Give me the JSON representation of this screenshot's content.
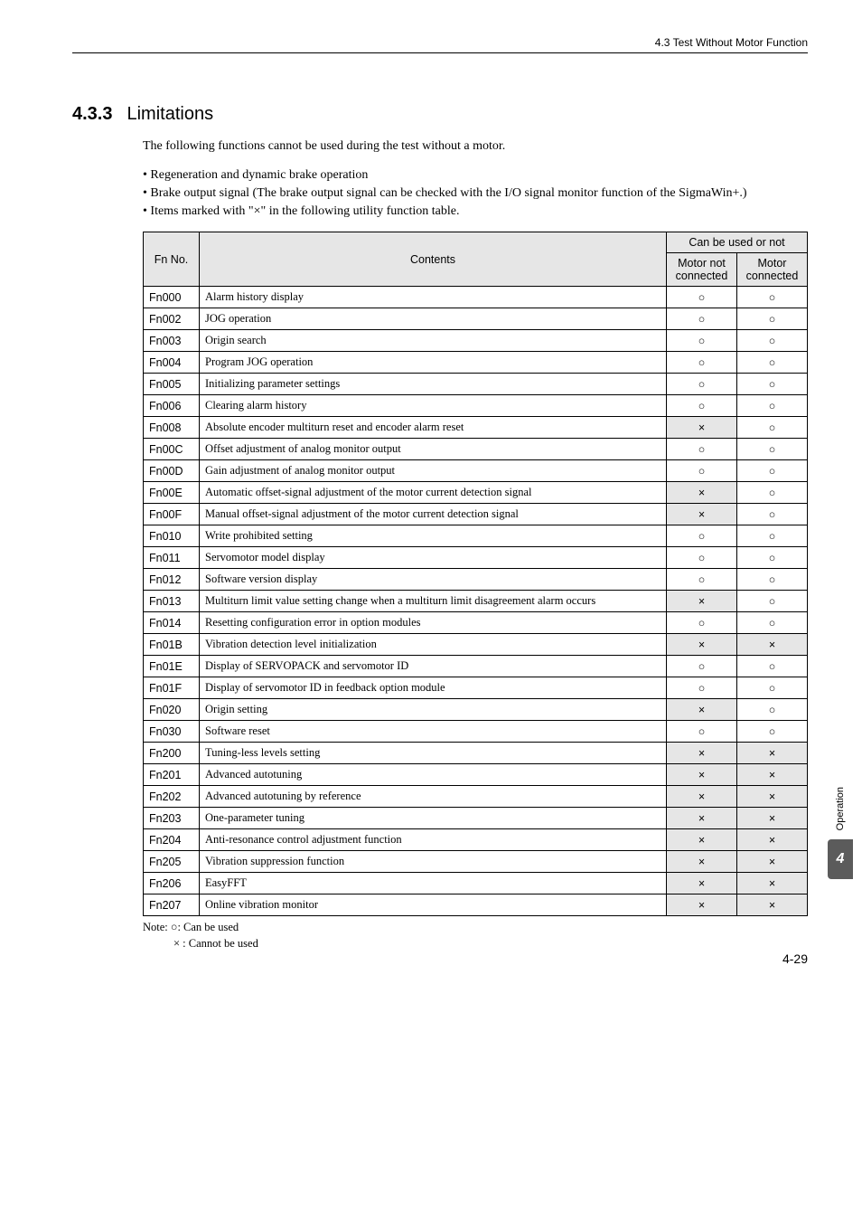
{
  "header": {
    "breadcrumb": "4.3  Test Without Motor Function"
  },
  "section": {
    "number": "4.3.3",
    "title": "Limitations"
  },
  "intro": "The following functions cannot be used during the test without a motor.",
  "bullets": [
    "Regeneration and dynamic brake operation",
    "Brake output signal (The brake output signal can be checked with the I/O signal monitor function of the SigmaWin+.)",
    "Items marked with \"×\" in the following utility function table."
  ],
  "table": {
    "header": {
      "fn": "Fn No.",
      "contents": "Contents",
      "group": "Can be used or not",
      "col_notconn": "Motor not connected",
      "col_conn": "Motor connected"
    },
    "rows": [
      {
        "fn": "Fn000",
        "desc": "Alarm history display",
        "nc": "○",
        "c": "○",
        "nc_shade": false,
        "c_shade": false
      },
      {
        "fn": "Fn002",
        "desc": "JOG operation",
        "nc": "○",
        "c": "○",
        "nc_shade": false,
        "c_shade": false
      },
      {
        "fn": "Fn003",
        "desc": "Origin search",
        "nc": "○",
        "c": "○",
        "nc_shade": false,
        "c_shade": false
      },
      {
        "fn": "Fn004",
        "desc": "Program JOG operation",
        "nc": "○",
        "c": "○",
        "nc_shade": false,
        "c_shade": false
      },
      {
        "fn": "Fn005",
        "desc": "Initializing parameter settings",
        "nc": "○",
        "c": "○",
        "nc_shade": false,
        "c_shade": false
      },
      {
        "fn": "Fn006",
        "desc": "Clearing alarm history",
        "nc": "○",
        "c": "○",
        "nc_shade": false,
        "c_shade": false
      },
      {
        "fn": "Fn008",
        "desc": "Absolute encoder multiturn reset and encoder alarm reset",
        "nc": "×",
        "c": "○",
        "nc_shade": true,
        "c_shade": false
      },
      {
        "fn": "Fn00C",
        "desc": "Offset adjustment of analog monitor output",
        "nc": "○",
        "c": "○",
        "nc_shade": false,
        "c_shade": false
      },
      {
        "fn": "Fn00D",
        "desc": "Gain adjustment of analog monitor output",
        "nc": "○",
        "c": "○",
        "nc_shade": false,
        "c_shade": false
      },
      {
        "fn": "Fn00E",
        "desc": "Automatic offset-signal adjustment of the motor current detection signal",
        "nc": "×",
        "c": "○",
        "nc_shade": true,
        "c_shade": false
      },
      {
        "fn": "Fn00F",
        "desc": "Manual offset-signal adjustment of the motor current detection signal",
        "nc": "×",
        "c": "○",
        "nc_shade": true,
        "c_shade": false
      },
      {
        "fn": "Fn010",
        "desc": "Write prohibited setting",
        "nc": "○",
        "c": "○",
        "nc_shade": false,
        "c_shade": false
      },
      {
        "fn": "Fn011",
        "desc": "Servomotor model display",
        "nc": "○",
        "c": "○",
        "nc_shade": false,
        "c_shade": false
      },
      {
        "fn": "Fn012",
        "desc": "Software version display",
        "nc": "○",
        "c": "○",
        "nc_shade": false,
        "c_shade": false
      },
      {
        "fn": "Fn013",
        "desc": "Multiturn limit value setting change when a multiturn limit disagreement alarm occurs",
        "nc": "×",
        "c": "○",
        "nc_shade": true,
        "c_shade": false
      },
      {
        "fn": "Fn014",
        "desc": "Resetting configuration error in option modules",
        "nc": "○",
        "c": "○",
        "nc_shade": false,
        "c_shade": false
      },
      {
        "fn": "Fn01B",
        "desc": "Vibration detection level initialization",
        "nc": "×",
        "c": "×",
        "nc_shade": true,
        "c_shade": true
      },
      {
        "fn": "Fn01E",
        "desc": "Display of SERVOPACK and servomotor ID",
        "nc": "○",
        "c": "○",
        "nc_shade": false,
        "c_shade": false
      },
      {
        "fn": "Fn01F",
        "desc": "Display of servomotor ID in feedback option module",
        "nc": "○",
        "c": "○",
        "nc_shade": false,
        "c_shade": false
      },
      {
        "fn": "Fn020",
        "desc": "Origin setting",
        "nc": "×",
        "c": "○",
        "nc_shade": true,
        "c_shade": false
      },
      {
        "fn": "Fn030",
        "desc": "Software reset",
        "nc": "○",
        "c": "○",
        "nc_shade": false,
        "c_shade": false
      },
      {
        "fn": "Fn200",
        "desc": "Tuning-less levels setting",
        "nc": "×",
        "c": "×",
        "nc_shade": true,
        "c_shade": true
      },
      {
        "fn": "Fn201",
        "desc": "Advanced autotuning",
        "nc": "×",
        "c": "×",
        "nc_shade": true,
        "c_shade": true
      },
      {
        "fn": "Fn202",
        "desc": "Advanced autotuning by reference",
        "nc": "×",
        "c": "×",
        "nc_shade": true,
        "c_shade": true
      },
      {
        "fn": "Fn203",
        "desc": "One-parameter tuning",
        "nc": "×",
        "c": "×",
        "nc_shade": true,
        "c_shade": true
      },
      {
        "fn": "Fn204",
        "desc": "Anti-resonance control adjustment function",
        "nc": "×",
        "c": "×",
        "nc_shade": true,
        "c_shade": true
      },
      {
        "fn": "Fn205",
        "desc": "Vibration suppression function",
        "nc": "×",
        "c": "×",
        "nc_shade": true,
        "c_shade": true
      },
      {
        "fn": "Fn206",
        "desc": "EasyFFT",
        "nc": "×",
        "c": "×",
        "nc_shade": true,
        "c_shade": true
      },
      {
        "fn": "Fn207",
        "desc": "Online vibration monitor",
        "nc": "×",
        "c": "×",
        "nc_shade": true,
        "c_shade": true
      }
    ]
  },
  "note": {
    "line1": "Note: ○: Can be used",
    "line2": "× : Cannot be used"
  },
  "sidebar": {
    "label": "Operation",
    "chapter": "4"
  },
  "page": "4-29"
}
